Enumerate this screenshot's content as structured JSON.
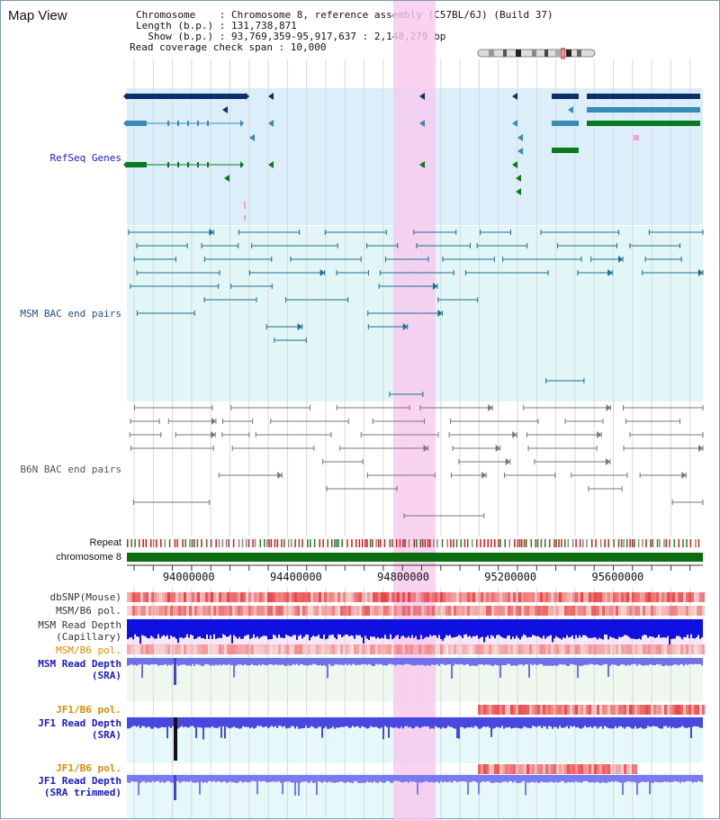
{
  "header": {
    "title": "Map View",
    "line1": "Chromosome    : Chromosome 8, reference assembly (C57BL/6J) (Build 37)",
    "line2": "Length (b.p.) : 131,738,871",
    "line3": "  Show (b.p.) : 93,769,359-95,917,637 : 2,148,279 bp",
    "line4": "Read coverage check span : 10,000"
  },
  "tracks": {
    "refseq": "RefSeq Genes",
    "msm_bac": "MSM BAC end pairs",
    "b6n_bac": "B6N BAC end pairs",
    "repeat": "Repeat",
    "chromosome": "chromosome 8",
    "dbsnp": "dbSNP(Mouse)",
    "msm_pol": "MSM/B6 pol.",
    "msm_depth_cap_1": "MSM Read Depth",
    "msm_depth_cap_2": "(Capillary)",
    "msm_pol_sra": "MSM/B6 pol.",
    "msm_depth_sra_1": "MSM Read Depth",
    "msm_depth_sra_2": "(SRA)",
    "jf1_pol": "JF1/B6 pol.",
    "jf1_depth_1": "JF1 Read Depth",
    "jf1_depth_2": "(SRA)",
    "jf1_pol_t": "JF1/B6 pol.",
    "jf1_depth_t_1": "JF1 Read Depth",
    "jf1_depth_t_2": "(SRA trimmed)"
  },
  "axis": {
    "range": [
      93769359,
      95917637
    ],
    "ticks": [
      "94000000",
      "94400000",
      "94800000",
      "95200000",
      "95600000"
    ],
    "tick_values": [
      94000000,
      94400000,
      94800000,
      95200000,
      95600000
    ]
  },
  "highlight_region": [
    94750000,
    94900000
  ],
  "colors": {
    "navy": "#0a2f6b",
    "steel": "#3a8ab8",
    "green": "#0a7a1e",
    "refseq_bg": "#dbeefa",
    "bac_bg": "#e2f6f8",
    "highlight": "#f8c8ec",
    "msm_label": "#1f4f8a",
    "pol_label": "#e08a00",
    "depth_label": "#1a1ac8"
  }
}
